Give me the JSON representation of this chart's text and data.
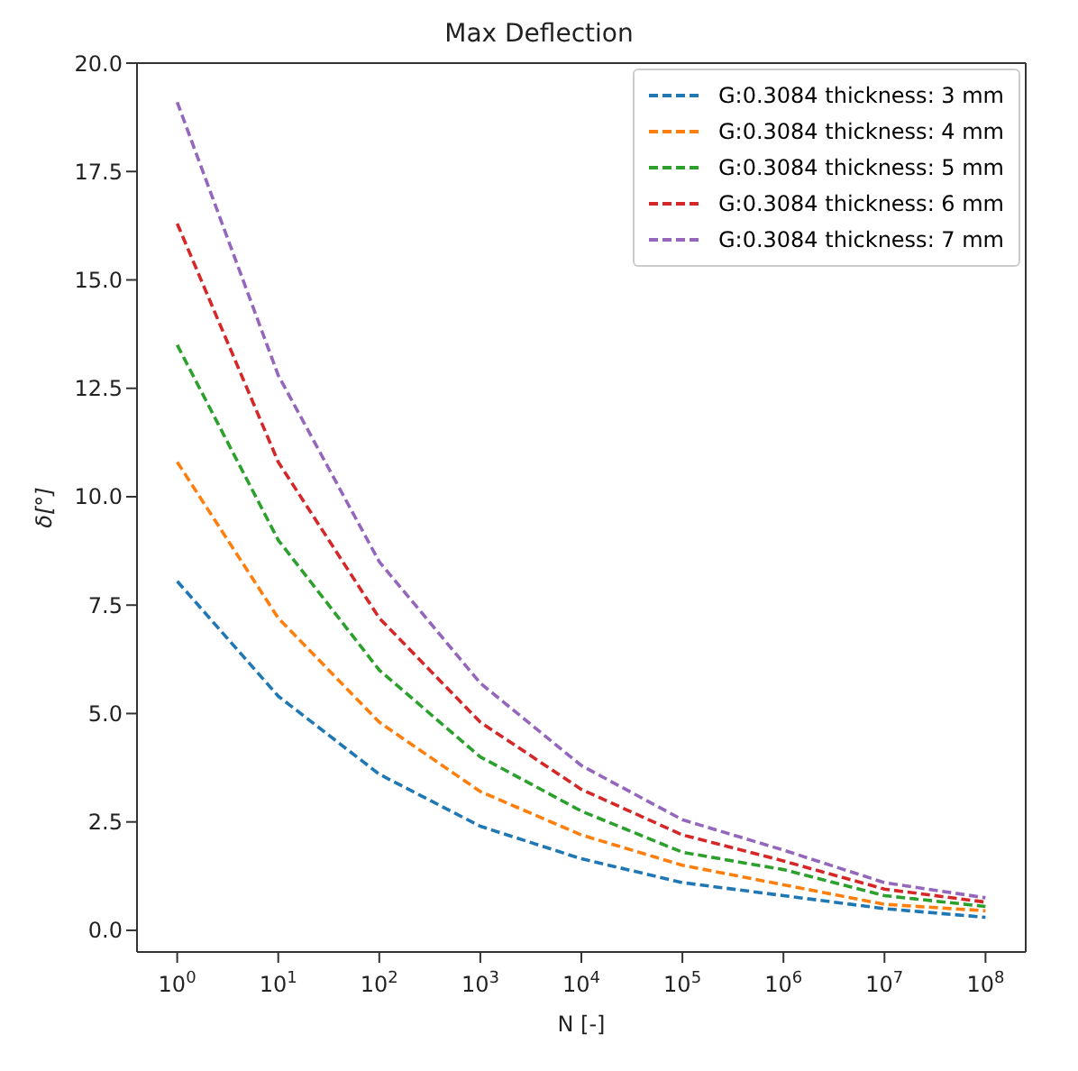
{
  "chart_data": {
    "type": "line",
    "title": "Max Deflection",
    "xlabel": "N [-]",
    "ylabel": "δ[°]",
    "x": [
      1,
      10,
      100,
      1000,
      10000,
      100000,
      1000000,
      10000000,
      100000000
    ],
    "series": [
      {
        "name": "G:0.3084 thickness: 3 mm",
        "color": "#1f77b4",
        "values": [
          8.05,
          5.4,
          3.6,
          2.4,
          1.65,
          1.1,
          0.8,
          0.5,
          0.3
        ]
      },
      {
        "name": "G:0.3084 thickness: 4 mm",
        "color": "#ff7f0e",
        "values": [
          10.8,
          7.2,
          4.8,
          3.2,
          2.2,
          1.5,
          1.05,
          0.6,
          0.45
        ]
      },
      {
        "name": "G:0.3084 thickness: 5 mm",
        "color": "#2ca02c",
        "values": [
          13.5,
          9.0,
          6.0,
          4.0,
          2.75,
          1.8,
          1.4,
          0.8,
          0.55
        ]
      },
      {
        "name": "G:0.3084 thickness: 6 mm",
        "color": "#d62728",
        "values": [
          16.3,
          10.8,
          7.2,
          4.8,
          3.25,
          2.2,
          1.6,
          0.95,
          0.65
        ]
      },
      {
        "name": "G:0.3084 thickness: 7 mm",
        "color": "#9467bd",
        "values": [
          19.1,
          12.8,
          8.5,
          5.7,
          3.8,
          2.55,
          1.85,
          1.1,
          0.75
        ]
      }
    ],
    "log": "x",
    "xlim": [
      0.4,
      250000000
    ],
    "xticks": [
      {
        "value": 1,
        "label": "10$^{0}$"
      },
      {
        "value": 10,
        "label": "10$^{1}$"
      },
      {
        "value": 100,
        "label": "10$^{2}$"
      },
      {
        "value": 1000,
        "label": "10$^{3}$"
      },
      {
        "value": 10000,
        "label": "10$^{4}$"
      },
      {
        "value": 100000,
        "label": "10$^{5}$"
      },
      {
        "value": 1000000,
        "label": "10$^{6}$"
      },
      {
        "value": 10000000,
        "label": "10$^{7}$"
      },
      {
        "value": 100000000,
        "label": "10$^{8}$"
      }
    ],
    "ylim": [
      -0.5,
      20
    ],
    "yticks": [
      {
        "value": 0,
        "label": "0.0"
      },
      {
        "value": 2.5,
        "label": "2.5"
      },
      {
        "value": 5,
        "label": "5.0"
      },
      {
        "value": 7.5,
        "label": "7.5"
      },
      {
        "value": 10,
        "label": "10.0"
      },
      {
        "value": 12.5,
        "label": "12.5"
      },
      {
        "value": 15,
        "label": "15.0"
      },
      {
        "value": 17.5,
        "label": "17.5"
      },
      {
        "value": 20,
        "label": "20.0"
      }
    ],
    "grid": false,
    "legend": "top right",
    "marker": "none",
    "line_style": "dashed"
  }
}
